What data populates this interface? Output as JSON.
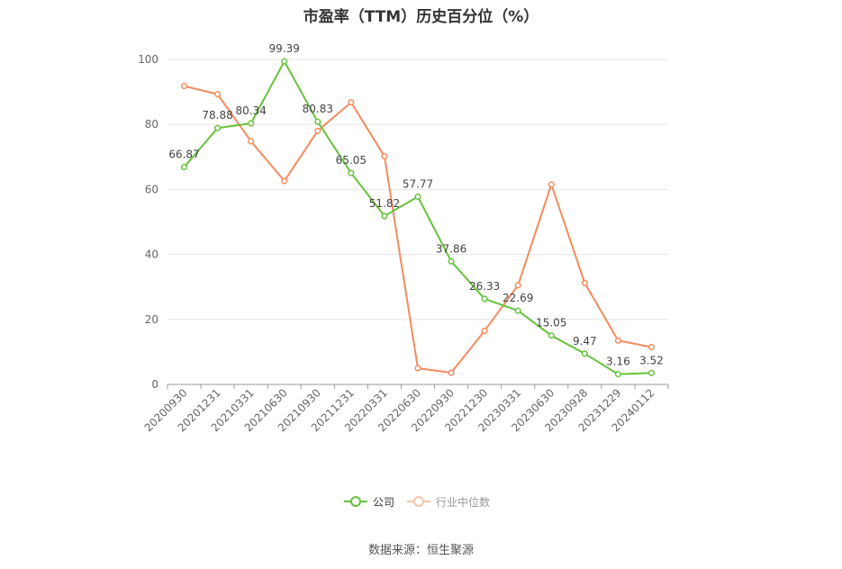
{
  "title": "市盈率（TTM）历史百分位（%）",
  "source": "数据来源：恒生聚源",
  "colors": {
    "company": "#66c23a",
    "industry": "#f48b5d",
    "grid": "#e6e6e6",
    "axis": "#999999",
    "text": "#666666"
  },
  "chart_data": {
    "type": "line",
    "title": "市盈率（TTM）历史百分位（%）",
    "categories": [
      "20200930",
      "20201231",
      "20210331",
      "20210630",
      "20210930",
      "20211231",
      "20220331",
      "20220630",
      "20220930",
      "20221230",
      "20230331",
      "20230630",
      "20230928",
      "20231229",
      "20240112"
    ],
    "ylim": [
      0,
      100
    ],
    "yticks": [
      0,
      20,
      40,
      60,
      80,
      100
    ],
    "grid": true,
    "legend_position": "bottom",
    "series": [
      {
        "name": "公司",
        "labeled": true,
        "values": [
          66.87,
          78.88,
          80.34,
          99.39,
          80.83,
          65.05,
          51.82,
          57.77,
          37.86,
          26.33,
          22.69,
          15.05,
          9.47,
          3.16,
          3.52
        ]
      },
      {
        "name": "行业中位数",
        "labeled": false,
        "values": [
          91.8,
          89.3,
          74.8,
          62.6,
          78.0,
          86.8,
          70.2,
          5.0,
          3.6,
          16.5,
          30.5,
          61.5,
          31.2,
          13.5,
          11.5
        ]
      }
    ]
  }
}
